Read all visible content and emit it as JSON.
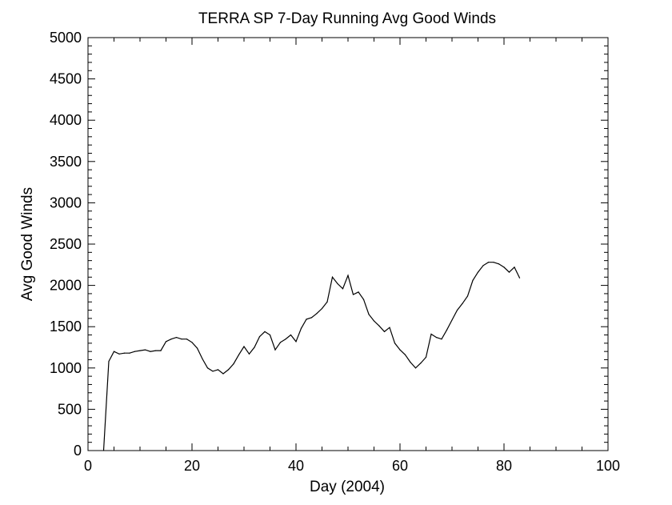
{
  "chart_data": {
    "type": "line",
    "title": "TERRA SP 7-Day Running Avg Good Winds",
    "xlabel": "Day (2004)",
    "ylabel": "Avg Good Winds",
    "xlim": [
      0,
      100
    ],
    "ylim": [
      0,
      5000
    ],
    "x_ticks": [
      0,
      20,
      40,
      60,
      80,
      100
    ],
    "y_ticks": [
      0,
      500,
      1000,
      1500,
      2000,
      2500,
      3000,
      3500,
      4000,
      4500,
      5000
    ],
    "grid": false,
    "line_color": "#000000",
    "series": [
      {
        "x": [
          3,
          4,
          5,
          6,
          7,
          8,
          9,
          10,
          11,
          12,
          13,
          14,
          15,
          16,
          17,
          18,
          19,
          20,
          21,
          22,
          23,
          24,
          25,
          26,
          27,
          28,
          29,
          30,
          31,
          32,
          33,
          34,
          35,
          36,
          37,
          38,
          39,
          40,
          41,
          42,
          43,
          44,
          45,
          46,
          47,
          48,
          49,
          50,
          51,
          52,
          53,
          54,
          55,
          56,
          57,
          58,
          59,
          60,
          61,
          62,
          63,
          64,
          65,
          66,
          67,
          68,
          69,
          70,
          71,
          72,
          73,
          74,
          75,
          76,
          77,
          78,
          79,
          80,
          81,
          82,
          83
        ],
        "y": [
          0,
          1080,
          1200,
          1170,
          1180,
          1180,
          1200,
          1210,
          1220,
          1200,
          1210,
          1210,
          1320,
          1350,
          1370,
          1350,
          1350,
          1310,
          1240,
          1110,
          1000,
          960,
          980,
          930,
          980,
          1050,
          1160,
          1260,
          1170,
          1250,
          1380,
          1440,
          1400,
          1220,
          1310,
          1350,
          1400,
          1320,
          1480,
          1590,
          1610,
          1660,
          1720,
          1800,
          2100,
          2020,
          1960,
          2120,
          1890,
          1920,
          1830,
          1650,
          1570,
          1510,
          1440,
          1490,
          1300,
          1220,
          1160,
          1070,
          1000,
          1060,
          1130,
          1410,
          1370,
          1350,
          1460,
          1580,
          1700,
          1780,
          1870,
          2060,
          2160,
          2240,
          2280,
          2280,
          2260,
          2220,
          2160,
          2220,
          2090
        ]
      }
    ]
  }
}
